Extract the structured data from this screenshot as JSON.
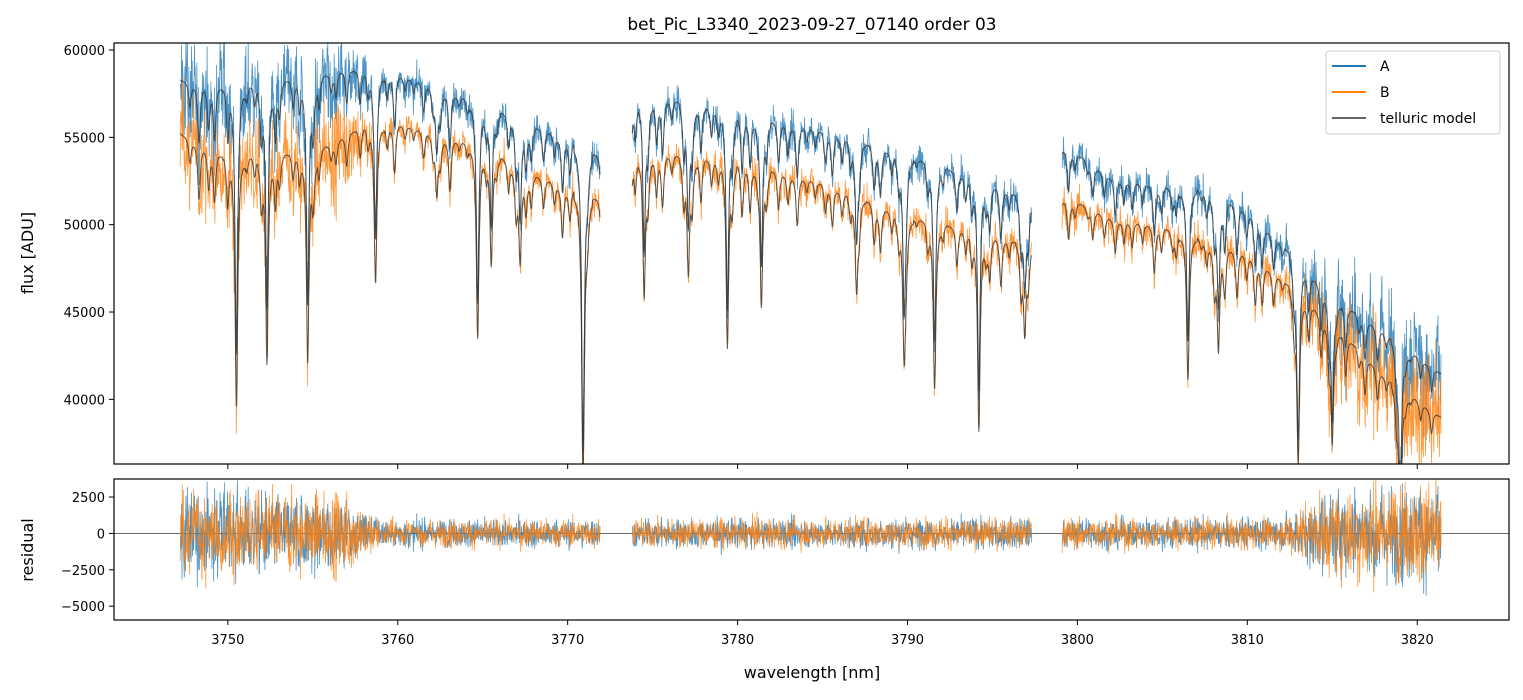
{
  "chart_data": {
    "type": "line",
    "title": "bet_Pic_L3340_2023-09-27_07140  order 03",
    "xlabel": "wavelength [nm]",
    "panels": [
      {
        "name": "flux",
        "ylabel": "flux [ADU]",
        "ylim": [
          36300,
          60400
        ],
        "yticks": [
          40000,
          45000,
          50000,
          55000,
          60000
        ],
        "yticklabels": [
          "40000",
          "45000",
          "50000",
          "55000",
          "60000"
        ]
      },
      {
        "name": "residual",
        "ylabel": "residual",
        "ylim": [
          -5950,
          3740
        ],
        "yticks": [
          -5000,
          -2500,
          0,
          2500
        ],
        "yticklabels": [
          "−5000",
          "−2500",
          "0",
          "2500"
        ]
      }
    ],
    "xlim": [
      3743.3,
      3825.4
    ],
    "xticks": [
      3750,
      3760,
      3770,
      3780,
      3790,
      3800,
      3810,
      3820
    ],
    "xticklabels": [
      "3750",
      "3760",
      "3770",
      "3780",
      "3790",
      "3800",
      "3810",
      "3820"
    ],
    "segments": [
      [
        3747.2,
        3771.9
      ],
      [
        3773.8,
        3797.3
      ],
      [
        3799.1,
        3821.4
      ]
    ],
    "series": [
      {
        "name": "A",
        "color": "#1f77b4",
        "continuum": [
          [
            3747,
            58300
          ],
          [
            3750,
            58000
          ],
          [
            3755,
            58500
          ],
          [
            3757,
            59000
          ],
          [
            3760,
            58700
          ],
          [
            3765,
            57000
          ],
          [
            3770,
            55000
          ],
          [
            3771.9,
            54000
          ],
          [
            3774,
            57500
          ],
          [
            3777,
            57200
          ],
          [
            3780,
            56500
          ],
          [
            3785,
            55500
          ],
          [
            3790,
            54000
          ],
          [
            3795,
            52500
          ],
          [
            3797.3,
            51500
          ],
          [
            3799,
            54700
          ],
          [
            3802,
            52800
          ],
          [
            3805,
            52300
          ],
          [
            3808,
            52000
          ],
          [
            3810,
            51000
          ],
          [
            3812,
            49000
          ],
          [
            3815,
            46000
          ],
          [
            3818,
            44000
          ],
          [
            3821.4,
            41500
          ]
        ]
      },
      {
        "name": "B",
        "color": "#ff7f0e",
        "continuum": [
          [
            3747,
            55300
          ],
          [
            3750,
            54000
          ],
          [
            3755,
            54200
          ],
          [
            3758,
            55800
          ],
          [
            3760,
            55900
          ],
          [
            3765,
            54500
          ],
          [
            3768,
            53000
          ],
          [
            3771.9,
            51500
          ],
          [
            3774,
            54300
          ],
          [
            3778,
            54000
          ],
          [
            3780,
            53800
          ],
          [
            3785,
            52500
          ],
          [
            3790,
            50500
          ],
          [
            3795,
            49500
          ],
          [
            3797.3,
            49000
          ],
          [
            3799,
            51700
          ],
          [
            3802,
            50500
          ],
          [
            3805,
            50000
          ],
          [
            3808,
            49000
          ],
          [
            3810,
            48500
          ],
          [
            3812,
            47000
          ],
          [
            3815,
            44500
          ],
          [
            3818,
            41500
          ],
          [
            3821.4,
            39000
          ]
        ]
      },
      {
        "name": "telluric model",
        "color": "#333333"
      }
    ],
    "lines": [
      [
        3750.5,
        0.25
      ],
      [
        3752.3,
        0.22
      ],
      [
        3754.7,
        0.22
      ],
      [
        3758.7,
        0.12
      ],
      [
        3762.3,
        0.06
      ],
      [
        3764.7,
        0.2
      ],
      [
        3765.5,
        0.12
      ],
      [
        3767.2,
        0.1
      ],
      [
        3770.9,
        0.3
      ],
      [
        3774.5,
        0.15
      ],
      [
        3777.1,
        0.12
      ],
      [
        3779.4,
        0.2
      ],
      [
        3781.4,
        0.15
      ],
      [
        3787,
        0.1
      ],
      [
        3789.8,
        0.15
      ],
      [
        3791.6,
        0.18
      ],
      [
        3794.2,
        0.23
      ],
      [
        3796.9,
        0.1
      ],
      [
        3806.5,
        0.12
      ],
      [
        3808.3,
        0.12
      ],
      [
        3813,
        0.18
      ],
      [
        3815,
        0.15
      ],
      [
        3819,
        0.2
      ]
    ],
    "residual_noise": [
      [
        3747,
        2500
      ],
      [
        3757,
        2200
      ],
      [
        3759,
        800
      ],
      [
        3812,
        900
      ],
      [
        3815,
        2500
      ],
      [
        3821.4,
        3000
      ]
    ],
    "legend": {
      "position": "top-right",
      "entries": [
        "A",
        "B",
        "telluric model"
      ]
    }
  }
}
